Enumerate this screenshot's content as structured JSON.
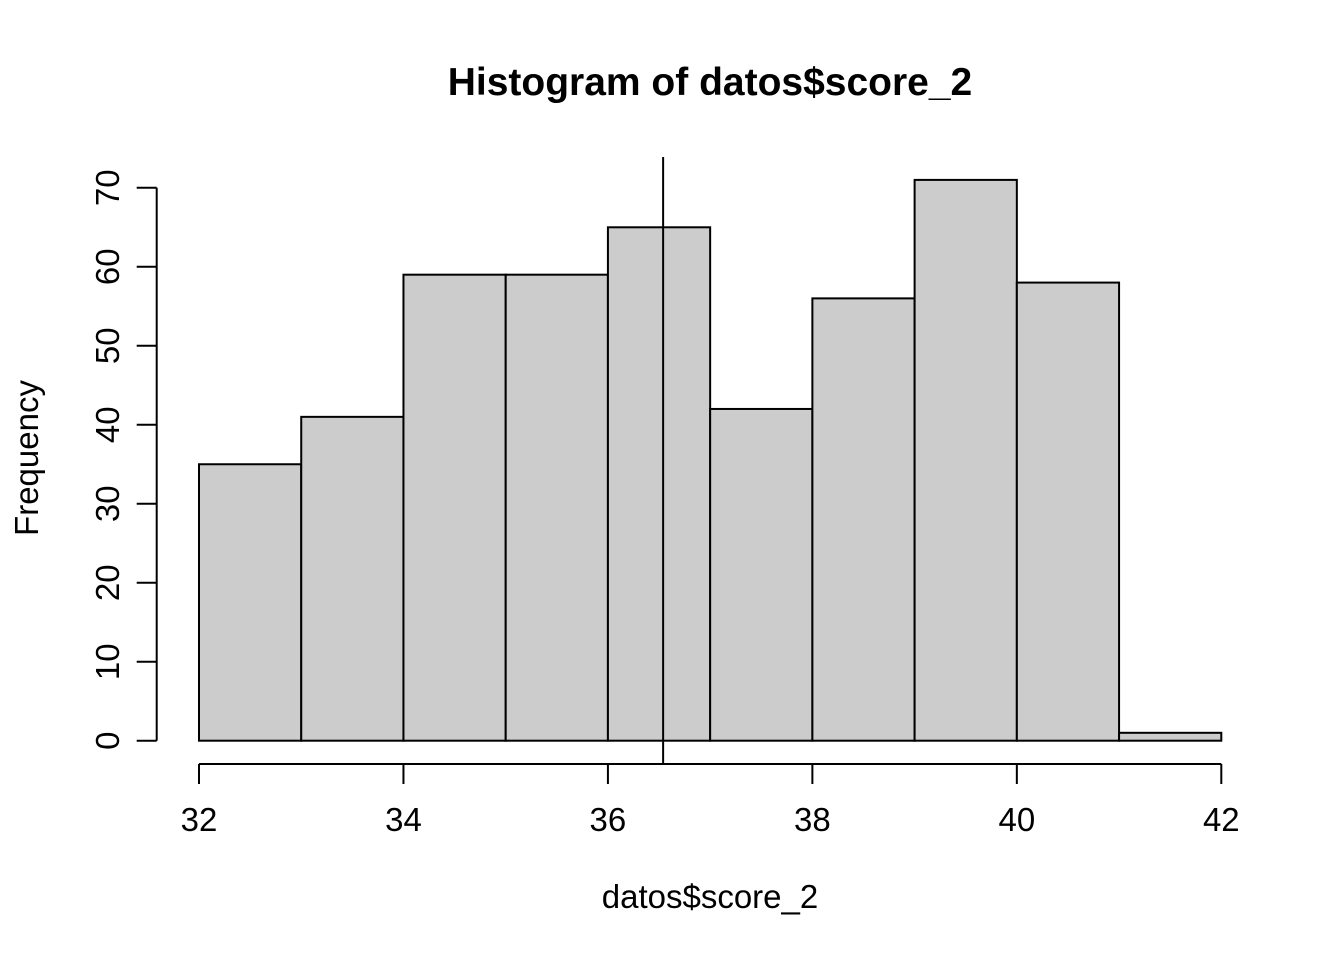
{
  "chart_data": {
    "type": "bar",
    "subtype": "histogram",
    "title": "Histogram of datos$score_2",
    "xlabel": "datos$score_2",
    "ylabel": "Frequency",
    "bin_edges": [
      32,
      33,
      34,
      35,
      36,
      37,
      38,
      39,
      40,
      41,
      42
    ],
    "counts": [
      35,
      41,
      59,
      59,
      65,
      42,
      56,
      71,
      58,
      1
    ],
    "x_ticks": [
      32,
      34,
      36,
      38,
      40,
      42
    ],
    "y_ticks": [
      0,
      10,
      20,
      30,
      40,
      50,
      60,
      70
    ],
    "xlim": [
      32,
      42
    ],
    "ylim": [
      0,
      70
    ],
    "vline_x": 36.54,
    "bar_fill": "#cccccc",
    "stroke": "#000000",
    "background": "#ffffff",
    "grid": false,
    "legend": false
  }
}
